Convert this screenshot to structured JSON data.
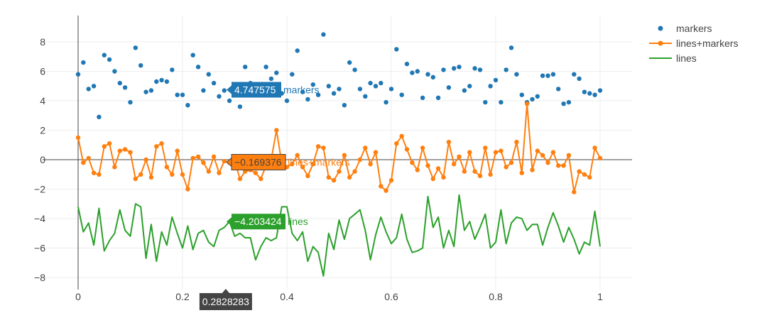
{
  "chart_data": {
    "type": "scatter",
    "x_ticks": [
      "0",
      "0.2",
      "0.4",
      "0.6",
      "0.8",
      "1"
    ],
    "y_ticks": [
      "−8",
      "−6",
      "−4",
      "−2",
      "0",
      "2",
      "4",
      "6",
      "8"
    ],
    "xlim": [
      0,
      1
    ],
    "ylim": [
      -8.6,
      9.4
    ],
    "grid": true,
    "legend_position": "top-right",
    "series": [
      {
        "name": "markers",
        "mode": "markers",
        "color": "#1f77b4",
        "x": [
          0,
          0.01,
          0.02,
          0.03,
          0.04,
          0.05,
          0.06,
          0.07,
          0.08,
          0.09,
          0.1,
          0.11,
          0.12,
          0.13,
          0.14,
          0.15,
          0.16,
          0.17,
          0.18,
          0.19,
          0.2,
          0.21,
          0.22,
          0.23,
          0.24,
          0.25,
          0.26,
          0.27,
          0.28,
          0.29,
          0.3,
          0.31,
          0.32,
          0.33,
          0.34,
          0.35,
          0.36,
          0.37,
          0.38,
          0.39,
          0.4,
          0.41,
          0.42,
          0.43,
          0.44,
          0.45,
          0.46,
          0.47,
          0.48,
          0.49,
          0.5,
          0.51,
          0.52,
          0.53,
          0.54,
          0.55,
          0.56,
          0.57,
          0.58,
          0.59,
          0.6,
          0.61,
          0.62,
          0.63,
          0.64,
          0.65,
          0.66,
          0.67,
          0.68,
          0.69,
          0.7,
          0.71,
          0.72,
          0.73,
          0.74,
          0.75,
          0.76,
          0.77,
          0.78,
          0.79,
          0.8,
          0.81,
          0.82,
          0.83,
          0.84,
          0.85,
          0.86,
          0.87,
          0.88,
          0.89,
          0.9,
          0.91,
          0.92,
          0.93,
          0.94,
          0.95,
          0.96,
          0.97,
          0.98,
          0.99,
          1
        ],
        "y": [
          5.8,
          6.6,
          4.8,
          5.0,
          2.9,
          7.1,
          6.8,
          6.0,
          5.2,
          4.9,
          3.9,
          7.6,
          6.4,
          4.6,
          4.7,
          5.3,
          5.4,
          5.3,
          6.1,
          4.4,
          4.4,
          3.7,
          7.1,
          6.3,
          4.7,
          5.8,
          5.2,
          4.3,
          4.7,
          4.0,
          4.4,
          3.6,
          6.3,
          5.2,
          5.0,
          4.7,
          6.3,
          5.5,
          5.9,
          4.5,
          4.0,
          5.8,
          7.4,
          4.6,
          4.1,
          5.1,
          4.4,
          8.5,
          5.0,
          4.5,
          4.8,
          3.7,
          6.6,
          6.1,
          4.8,
          4.3,
          5.2,
          5.0,
          5.2,
          3.9,
          4.8,
          7.5,
          4.4,
          6.5,
          5.9,
          6.0,
          4.2,
          5.8,
          5.6,
          4.2,
          6.1,
          4.9,
          6.2,
          6.3,
          4.7,
          5.0,
          6.2,
          6.1,
          3.9,
          5.0,
          5.4,
          3.9,
          6.1,
          7.6,
          5.8,
          4.4,
          3.9,
          4.1,
          4.3,
          5.7,
          5.7,
          5.8,
          4.8,
          3.8,
          3.9,
          5.8,
          5.5,
          4.6,
          4.5,
          4.4,
          4.7
        ]
      },
      {
        "name": "lines+markers",
        "mode": "lines+markers",
        "color": "#ff7f0e",
        "x": [
          0,
          0.01,
          0.02,
          0.03,
          0.04,
          0.05,
          0.06,
          0.07,
          0.08,
          0.09,
          0.1,
          0.11,
          0.12,
          0.13,
          0.14,
          0.15,
          0.16,
          0.17,
          0.18,
          0.19,
          0.2,
          0.21,
          0.22,
          0.23,
          0.24,
          0.25,
          0.26,
          0.27,
          0.28,
          0.29,
          0.3,
          0.31,
          0.32,
          0.33,
          0.34,
          0.35,
          0.36,
          0.37,
          0.38,
          0.39,
          0.4,
          0.41,
          0.42,
          0.43,
          0.44,
          0.45,
          0.46,
          0.47,
          0.48,
          0.49,
          0.5,
          0.51,
          0.52,
          0.53,
          0.54,
          0.55,
          0.56,
          0.57,
          0.58,
          0.59,
          0.6,
          0.61,
          0.62,
          0.63,
          0.64,
          0.65,
          0.66,
          0.67,
          0.68,
          0.69,
          0.7,
          0.71,
          0.72,
          0.73,
          0.74,
          0.75,
          0.76,
          0.77,
          0.78,
          0.79,
          0.8,
          0.81,
          0.82,
          0.83,
          0.84,
          0.85,
          0.86,
          0.87,
          0.88,
          0.89,
          0.9,
          0.91,
          0.92,
          0.93,
          0.94,
          0.95,
          0.96,
          0.97,
          0.98,
          0.99,
          1
        ],
        "y": [
          1.5,
          -0.2,
          0.1,
          -0.9,
          -1.0,
          0.9,
          1.1,
          -0.5,
          0.6,
          0.7,
          0.5,
          -1.3,
          -1.0,
          0.0,
          -1.2,
          0.9,
          1.1,
          -0.5,
          -1.0,
          0.6,
          -1.0,
          -2.0,
          0.1,
          0.2,
          -0.2,
          -0.8,
          0.2,
          -0.9,
          -0.1,
          -0.2,
          -0.1,
          -1.3,
          -0.8,
          -0.7,
          -0.9,
          -1.3,
          -0.4,
          0.0,
          2.0,
          -0.2,
          -0.5,
          -0.3,
          0.3,
          -0.5,
          -1.1,
          -0.3,
          0.9,
          0.8,
          -1.2,
          -1.4,
          -0.8,
          0.3,
          -1.2,
          -0.8,
          0.0,
          0.8,
          -0.3,
          0.5,
          -1.8,
          -2.1,
          -1.4,
          1.1,
          1.6,
          0.7,
          -0.2,
          -0.7,
          0.8,
          -0.4,
          -1.3,
          -0.6,
          -1.2,
          1.2,
          -0.3,
          0.2,
          -0.8,
          0.5,
          -0.8,
          -1.1,
          0.8,
          -1.0,
          0.5,
          0.6,
          -0.5,
          -0.2,
          1.2,
          -0.9,
          3.8,
          -0.7,
          0.6,
          0.3,
          -0.2,
          0.5,
          -0.4,
          -0.4,
          0.3,
          -2.2,
          -0.8,
          -1.0,
          -1.2,
          0.8,
          0.1
        ]
      },
      {
        "name": "lines",
        "mode": "lines",
        "color": "#2ca02c",
        "x": [
          0,
          0.01,
          0.02,
          0.03,
          0.04,
          0.05,
          0.06,
          0.07,
          0.08,
          0.09,
          0.1,
          0.11,
          0.12,
          0.13,
          0.14,
          0.15,
          0.16,
          0.17,
          0.18,
          0.19,
          0.2,
          0.21,
          0.22,
          0.23,
          0.24,
          0.25,
          0.26,
          0.27,
          0.28,
          0.29,
          0.3,
          0.31,
          0.32,
          0.33,
          0.34,
          0.35,
          0.36,
          0.37,
          0.38,
          0.39,
          0.4,
          0.41,
          0.42,
          0.43,
          0.44,
          0.45,
          0.46,
          0.47,
          0.48,
          0.49,
          0.5,
          0.51,
          0.52,
          0.53,
          0.54,
          0.55,
          0.56,
          0.57,
          0.58,
          0.59,
          0.6,
          0.61,
          0.62,
          0.63,
          0.64,
          0.65,
          0.66,
          0.67,
          0.68,
          0.69,
          0.7,
          0.71,
          0.72,
          0.73,
          0.74,
          0.75,
          0.76,
          0.77,
          0.78,
          0.79,
          0.8,
          0.81,
          0.82,
          0.83,
          0.84,
          0.85,
          0.86,
          0.87,
          0.88,
          0.89,
          0.9,
          0.91,
          0.92,
          0.93,
          0.94,
          0.95,
          0.96,
          0.97,
          0.98,
          0.99,
          1
        ],
        "y": [
          -3.2,
          -4.9,
          -4.3,
          -5.8,
          -3.3,
          -6.2,
          -5.5,
          -5.0,
          -3.4,
          -4.8,
          -5.2,
          -3.0,
          -3.2,
          -6.7,
          -4.4,
          -6.9,
          -4.9,
          -5.8,
          -3.9,
          -5.0,
          -6.0,
          -4.5,
          -6.1,
          -5.0,
          -4.8,
          -5.6,
          -5.9,
          -4.8,
          -4.6,
          -4.2,
          -5.2,
          -5.0,
          -5.3,
          -5.3,
          -6.8,
          -5.9,
          -5.3,
          -5.5,
          -5.3,
          -3.2,
          -3.2,
          -5.0,
          -5.5,
          -4.9,
          -6.9,
          -5.9,
          -6.3,
          -7.9,
          -5.0,
          -6.1,
          -4.1,
          -5.4,
          -4.0,
          -3.7,
          -3.4,
          -4.8,
          -6.8,
          -5.1,
          -3.9,
          -4.9,
          -5.7,
          -5.3,
          -3.7,
          -5.4,
          -6.3,
          -6.2,
          -6.0,
          -2.5,
          -4.6,
          -3.9,
          -6.0,
          -4.8,
          -5.9,
          -2.4,
          -4.8,
          -4.2,
          -5.4,
          -4.6,
          -3.7,
          -6.0,
          -5.6,
          -3.4,
          -5.7,
          -4.3,
          -3.9,
          -4.0,
          -4.8,
          -4.4,
          -4.4,
          -5.8,
          -4.6,
          -3.6,
          -4.5,
          -5.6,
          -4.6,
          -5.4,
          -6.4,
          -5.6,
          -5.8,
          -3.5,
          -5.9
        ]
      }
    ],
    "hover": {
      "x_label": "0.2828283",
      "markers": {
        "value": "4.747575",
        "name": "markers"
      },
      "lines_markers": {
        "value": "−0.169376",
        "name": "lines+markers"
      },
      "lines": {
        "value": "−4.203424",
        "name": "lines"
      }
    }
  }
}
